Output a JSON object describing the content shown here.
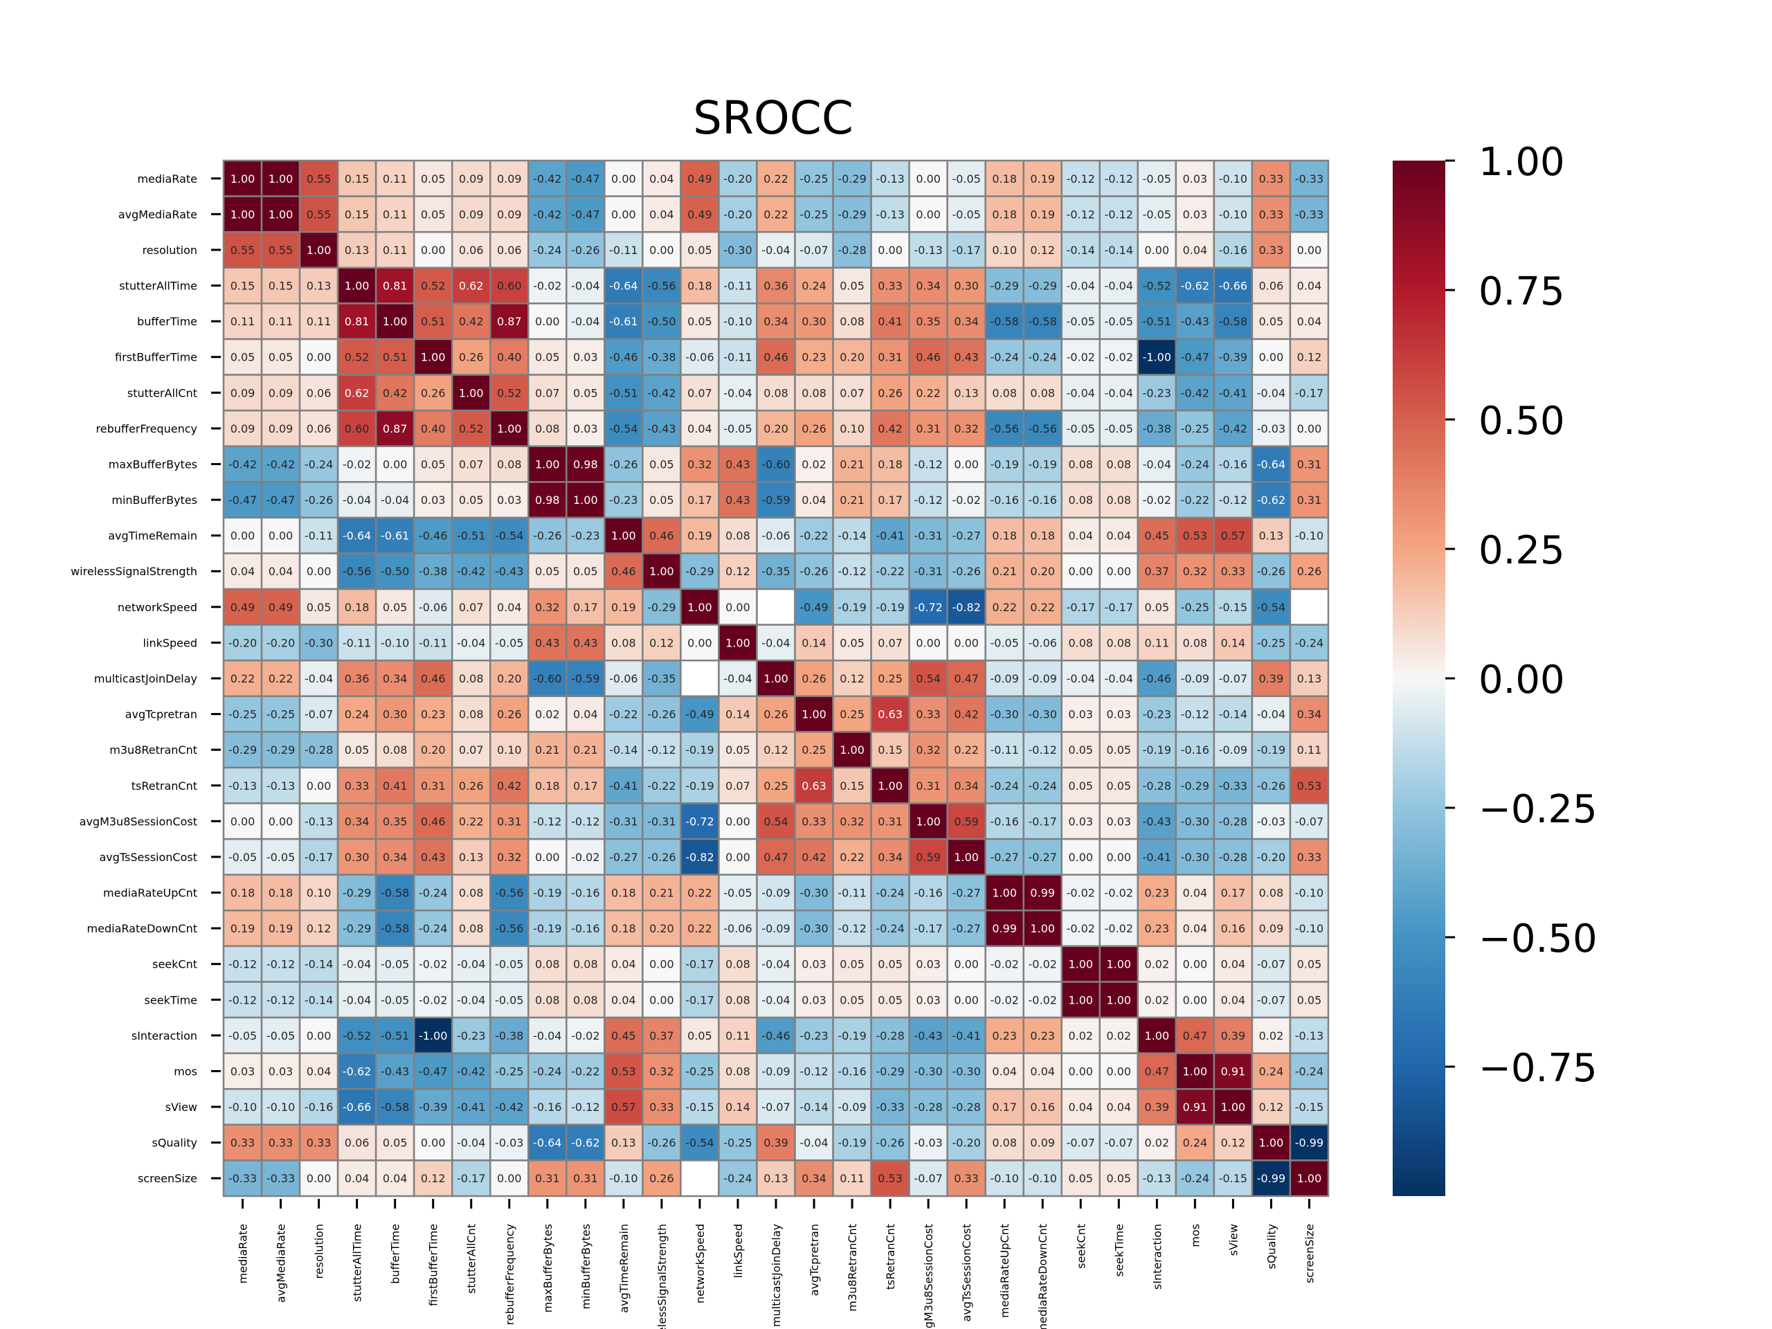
{
  "chart_data": {
    "type": "heatmap",
    "title": "SROCC",
    "labels": [
      "mediaRate",
      "avgMediaRate",
      "resolution",
      "stutterAllTime",
      "bufferTime",
      "firstBufferTime",
      "stutterAllCnt",
      "rebufferFrequency",
      "maxBufferBytes",
      "minBufferBytes",
      "avgTimeRemain",
      "wirelessSignalStrength",
      "networkSpeed",
      "linkSpeed",
      "multicastJoinDelay",
      "avgTcpretran",
      "m3u8RetranCnt",
      "tsRetranCnt",
      "avgM3u8SessionCost",
      "avgTsSessionCost",
      "mediaRateUpCnt",
      "mediaRateDownCnt",
      "seekCnt",
      "seekTime",
      "sInteraction",
      "mos",
      "sView",
      "sQuality",
      "screenSize"
    ],
    "matrix": [
      [
        1.0,
        1.0,
        0.55,
        0.15,
        0.11,
        0.05,
        0.09,
        0.09,
        -0.42,
        -0.47,
        0.0,
        0.04,
        0.49,
        -0.2,
        0.22,
        -0.25,
        -0.29,
        -0.13,
        0.0,
        -0.05,
        0.18,
        0.19,
        -0.12,
        -0.12,
        -0.05,
        0.03,
        -0.1,
        0.33,
        -0.33
      ],
      [
        1.0,
        1.0,
        0.55,
        0.15,
        0.11,
        0.05,
        0.09,
        0.09,
        -0.42,
        -0.47,
        0.0,
        0.04,
        0.49,
        -0.2,
        0.22,
        -0.25,
        -0.29,
        -0.13,
        0.0,
        -0.05,
        0.18,
        0.19,
        -0.12,
        -0.12,
        -0.05,
        0.03,
        -0.1,
        0.33,
        -0.33
      ],
      [
        0.55,
        0.55,
        1.0,
        0.13,
        0.11,
        0.0,
        0.06,
        0.06,
        -0.24,
        -0.26,
        -0.11,
        0.0,
        0.05,
        -0.3,
        -0.04,
        -0.07,
        -0.28,
        0.0,
        -0.13,
        -0.17,
        0.1,
        0.12,
        -0.14,
        -0.14,
        0.0,
        0.04,
        -0.16,
        0.33,
        0.0
      ],
      [
        0.15,
        0.15,
        0.13,
        1.0,
        0.81,
        0.52,
        0.62,
        0.6,
        -0.02,
        -0.04,
        -0.64,
        -0.56,
        0.18,
        -0.11,
        0.36,
        0.24,
        0.05,
        0.33,
        0.34,
        0.3,
        -0.29,
        -0.29,
        -0.04,
        -0.04,
        -0.52,
        -0.62,
        -0.66,
        0.06,
        0.04
      ],
      [
        0.11,
        0.11,
        0.11,
        0.81,
        1.0,
        0.51,
        0.42,
        0.87,
        0.0,
        -0.04,
        -0.61,
        -0.5,
        0.05,
        -0.1,
        0.34,
        0.3,
        0.08,
        0.41,
        0.35,
        0.34,
        -0.58,
        -0.58,
        -0.05,
        -0.05,
        -0.51,
        -0.43,
        -0.58,
        0.05,
        0.04
      ],
      [
        0.05,
        0.05,
        0.0,
        0.52,
        0.51,
        1.0,
        0.26,
        0.4,
        0.05,
        0.03,
        -0.46,
        -0.38,
        -0.06,
        -0.11,
        0.46,
        0.23,
        0.2,
        0.31,
        0.46,
        0.43,
        -0.24,
        -0.24,
        -0.02,
        -0.02,
        -1.0,
        -0.47,
        -0.39,
        0.0,
        0.12
      ],
      [
        0.09,
        0.09,
        0.06,
        0.62,
        0.42,
        0.26,
        1.0,
        0.52,
        0.07,
        0.05,
        -0.51,
        -0.42,
        0.07,
        -0.04,
        0.08,
        0.08,
        0.07,
        0.26,
        0.22,
        0.13,
        0.08,
        0.08,
        -0.04,
        -0.04,
        -0.23,
        -0.42,
        -0.41,
        -0.04,
        -0.17
      ],
      [
        0.09,
        0.09,
        0.06,
        0.6,
        0.87,
        0.4,
        0.52,
        1.0,
        0.08,
        0.03,
        -0.54,
        -0.43,
        0.04,
        -0.05,
        0.2,
        0.26,
        0.1,
        0.42,
        0.31,
        0.32,
        -0.56,
        -0.56,
        -0.05,
        -0.05,
        -0.38,
        -0.25,
        -0.42,
        -0.03,
        0.0
      ],
      [
        -0.42,
        -0.42,
        -0.24,
        -0.02,
        0.0,
        0.05,
        0.07,
        0.08,
        1.0,
        0.98,
        -0.26,
        0.05,
        0.32,
        0.43,
        -0.6,
        0.02,
        0.21,
        0.18,
        -0.12,
        0.0,
        -0.19,
        -0.19,
        0.08,
        0.08,
        -0.04,
        -0.24,
        -0.16,
        -0.64,
        0.31
      ],
      [
        -0.47,
        -0.47,
        -0.26,
        -0.04,
        -0.04,
        0.03,
        0.05,
        0.03,
        0.98,
        1.0,
        -0.23,
        0.05,
        0.17,
        0.43,
        -0.59,
        0.04,
        0.21,
        0.17,
        -0.12,
        -0.02,
        -0.16,
        -0.16,
        0.08,
        0.08,
        -0.02,
        -0.22,
        -0.12,
        -0.62,
        0.31
      ],
      [
        0.0,
        0.0,
        -0.11,
        -0.64,
        -0.61,
        -0.46,
        -0.51,
        -0.54,
        -0.26,
        -0.23,
        1.0,
        0.46,
        0.19,
        0.08,
        -0.06,
        -0.22,
        -0.14,
        -0.41,
        -0.31,
        -0.27,
        0.18,
        0.18,
        0.04,
        0.04,
        0.45,
        0.53,
        0.57,
        0.13,
        -0.1
      ],
      [
        0.04,
        0.04,
        0.0,
        -0.56,
        -0.5,
        -0.38,
        -0.42,
        -0.43,
        0.05,
        0.05,
        0.46,
        1.0,
        -0.29,
        0.12,
        -0.35,
        -0.26,
        -0.12,
        -0.22,
        -0.31,
        -0.26,
        0.21,
        0.2,
        0.0,
        0.0,
        0.37,
        0.32,
        0.33,
        -0.26,
        0.26
      ],
      [
        0.49,
        0.49,
        0.05,
        0.18,
        0.05,
        -0.06,
        0.07,
        0.04,
        0.32,
        0.17,
        0.19,
        -0.29,
        1.0,
        0.0,
        null,
        -0.49,
        -0.19,
        -0.19,
        -0.72,
        -0.82,
        0.22,
        0.22,
        -0.17,
        -0.17,
        0.05,
        -0.25,
        -0.15,
        -0.54,
        null
      ],
      [
        -0.2,
        -0.2,
        -0.3,
        -0.11,
        -0.1,
        -0.11,
        -0.04,
        -0.05,
        0.43,
        0.43,
        0.08,
        0.12,
        0.0,
        1.0,
        -0.04,
        0.14,
        0.05,
        0.07,
        0.0,
        0.0,
        -0.05,
        -0.06,
        0.08,
        0.08,
        0.11,
        0.08,
        0.14,
        -0.25,
        -0.24
      ],
      [
        0.22,
        0.22,
        -0.04,
        0.36,
        0.34,
        0.46,
        0.08,
        0.2,
        -0.6,
        -0.59,
        -0.06,
        -0.35,
        null,
        -0.04,
        1.0,
        0.26,
        0.12,
        0.25,
        0.54,
        0.47,
        -0.09,
        -0.09,
        -0.04,
        -0.04,
        -0.46,
        -0.09,
        -0.07,
        0.39,
        0.13
      ],
      [
        -0.25,
        -0.25,
        -0.07,
        0.24,
        0.3,
        0.23,
        0.08,
        0.26,
        0.02,
        0.04,
        -0.22,
        -0.26,
        -0.49,
        0.14,
        0.26,
        1.0,
        0.25,
        0.63,
        0.33,
        0.42,
        -0.3,
        -0.3,
        0.03,
        0.03,
        -0.23,
        -0.12,
        -0.14,
        -0.04,
        0.34
      ],
      [
        -0.29,
        -0.29,
        -0.28,
        0.05,
        0.08,
        0.2,
        0.07,
        0.1,
        0.21,
        0.21,
        -0.14,
        -0.12,
        -0.19,
        0.05,
        0.12,
        0.25,
        1.0,
        0.15,
        0.32,
        0.22,
        -0.11,
        -0.12,
        0.05,
        0.05,
        -0.19,
        -0.16,
        -0.09,
        -0.19,
        0.11
      ],
      [
        -0.13,
        -0.13,
        0.0,
        0.33,
        0.41,
        0.31,
        0.26,
        0.42,
        0.18,
        0.17,
        -0.41,
        -0.22,
        -0.19,
        0.07,
        0.25,
        0.63,
        0.15,
        1.0,
        0.31,
        0.34,
        -0.24,
        -0.24,
        0.05,
        0.05,
        -0.28,
        -0.29,
        -0.33,
        -0.26,
        0.53
      ],
      [
        0.0,
        0.0,
        -0.13,
        0.34,
        0.35,
        0.46,
        0.22,
        0.31,
        -0.12,
        -0.12,
        -0.31,
        -0.31,
        -0.72,
        0.0,
        0.54,
        0.33,
        0.32,
        0.31,
        1.0,
        0.59,
        -0.16,
        -0.17,
        0.03,
        0.03,
        -0.43,
        -0.3,
        -0.28,
        -0.03,
        -0.07
      ],
      [
        -0.05,
        -0.05,
        -0.17,
        0.3,
        0.34,
        0.43,
        0.13,
        0.32,
        0.0,
        -0.02,
        -0.27,
        -0.26,
        -0.82,
        0.0,
        0.47,
        0.42,
        0.22,
        0.34,
        0.59,
        1.0,
        -0.27,
        -0.27,
        0.0,
        0.0,
        -0.41,
        -0.3,
        -0.28,
        -0.2,
        0.33
      ],
      [
        0.18,
        0.18,
        0.1,
        -0.29,
        -0.58,
        -0.24,
        0.08,
        -0.56,
        -0.19,
        -0.16,
        0.18,
        0.21,
        0.22,
        -0.05,
        -0.09,
        -0.3,
        -0.11,
        -0.24,
        -0.16,
        -0.27,
        1.0,
        0.99,
        -0.02,
        -0.02,
        0.23,
        0.04,
        0.17,
        0.08,
        -0.1
      ],
      [
        0.19,
        0.19,
        0.12,
        -0.29,
        -0.58,
        -0.24,
        0.08,
        -0.56,
        -0.19,
        -0.16,
        0.18,
        0.2,
        0.22,
        -0.06,
        -0.09,
        -0.3,
        -0.12,
        -0.24,
        -0.17,
        -0.27,
        0.99,
        1.0,
        -0.02,
        -0.02,
        0.23,
        0.04,
        0.16,
        0.09,
        -0.1
      ],
      [
        -0.12,
        -0.12,
        -0.14,
        -0.04,
        -0.05,
        -0.02,
        -0.04,
        -0.05,
        0.08,
        0.08,
        0.04,
        0.0,
        -0.17,
        0.08,
        -0.04,
        0.03,
        0.05,
        0.05,
        0.03,
        0.0,
        -0.02,
        -0.02,
        1.0,
        1.0,
        0.02,
        0.0,
        0.04,
        -0.07,
        0.05
      ],
      [
        -0.12,
        -0.12,
        -0.14,
        -0.04,
        -0.05,
        -0.02,
        -0.04,
        -0.05,
        0.08,
        0.08,
        0.04,
        0.0,
        -0.17,
        0.08,
        -0.04,
        0.03,
        0.05,
        0.05,
        0.03,
        0.0,
        -0.02,
        -0.02,
        1.0,
        1.0,
        0.02,
        0.0,
        0.04,
        -0.07,
        0.05
      ],
      [
        -0.05,
        -0.05,
        0.0,
        -0.52,
        -0.51,
        -1.0,
        -0.23,
        -0.38,
        -0.04,
        -0.02,
        0.45,
        0.37,
        0.05,
        0.11,
        -0.46,
        -0.23,
        -0.19,
        -0.28,
        -0.43,
        -0.41,
        0.23,
        0.23,
        0.02,
        0.02,
        1.0,
        0.47,
        0.39,
        0.02,
        -0.13
      ],
      [
        0.03,
        0.03,
        0.04,
        -0.62,
        -0.43,
        -0.47,
        -0.42,
        -0.25,
        -0.24,
        -0.22,
        0.53,
        0.32,
        -0.25,
        0.08,
        -0.09,
        -0.12,
        -0.16,
        -0.29,
        -0.3,
        -0.3,
        0.04,
        0.04,
        0.0,
        0.0,
        0.47,
        1.0,
        0.91,
        0.24,
        -0.24
      ],
      [
        -0.1,
        -0.1,
        -0.16,
        -0.66,
        -0.58,
        -0.39,
        -0.41,
        -0.42,
        -0.16,
        -0.12,
        0.57,
        0.33,
        -0.15,
        0.14,
        -0.07,
        -0.14,
        -0.09,
        -0.33,
        -0.28,
        -0.28,
        0.17,
        0.16,
        0.04,
        0.04,
        0.39,
        0.91,
        1.0,
        0.12,
        -0.15
      ],
      [
        0.33,
        0.33,
        0.33,
        0.06,
        0.05,
        0.0,
        -0.04,
        -0.03,
        -0.64,
        -0.62,
        0.13,
        -0.26,
        -0.54,
        -0.25,
        0.39,
        -0.04,
        -0.19,
        -0.26,
        -0.03,
        -0.2,
        0.08,
        0.09,
        -0.07,
        -0.07,
        0.02,
        0.24,
        0.12,
        1.0,
        -0.99
      ],
      [
        -0.33,
        -0.33,
        0.0,
        0.04,
        0.04,
        0.12,
        -0.17,
        0.0,
        0.31,
        0.31,
        -0.1,
        0.26,
        null,
        -0.24,
        0.13,
        0.34,
        0.11,
        0.53,
        -0.07,
        0.33,
        -0.1,
        -0.1,
        0.05,
        0.05,
        -0.13,
        -0.24,
        -0.15,
        -0.99,
        1.0
      ]
    ],
    "colorbar": {
      "ticks": [
        1.0,
        0.75,
        0.5,
        0.25,
        0.0,
        -0.25,
        -0.5,
        -0.75
      ],
      "tick_labels": [
        "1.00",
        "0.75",
        "0.50",
        "0.25",
        "0.00",
        "−0.25",
        "−0.50",
        "−0.75"
      ],
      "range": [
        -1.0,
        1.0
      ],
      "colormap": "RdBu_r"
    }
  }
}
